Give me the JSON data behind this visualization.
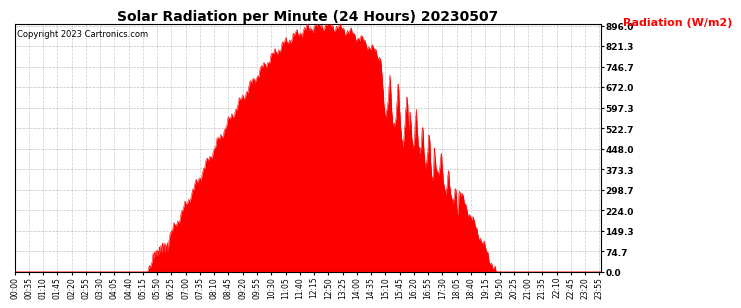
{
  "title": "Solar Radiation per Minute (24 Hours) 20230507",
  "copyright_text": "Copyright 2023 Cartronics.com",
  "ylabel": "Radiation (W/m2)",
  "ylabel_color": "#ff0000",
  "background_color": "#ffffff",
  "fill_color": "#ff0000",
  "line_color": "#ff0000",
  "grid_color": "#999999",
  "yticks": [
    0.0,
    74.7,
    149.3,
    224.0,
    298.7,
    373.3,
    448.0,
    522.7,
    597.3,
    672.0,
    746.7,
    821.3,
    896.0
  ],
  "ymax": 896.0,
  "ymin": 0.0,
  "hline_color": "#ff0000",
  "total_minutes": 1440,
  "sunrise_minute": 325,
  "sunset_minute": 1180,
  "peak_minute": 760,
  "peak_value": 896.0,
  "xtick_step": 35,
  "title_fontsize": 10,
  "tick_fontsize": 6.5,
  "ylabel_fontsize": 8
}
